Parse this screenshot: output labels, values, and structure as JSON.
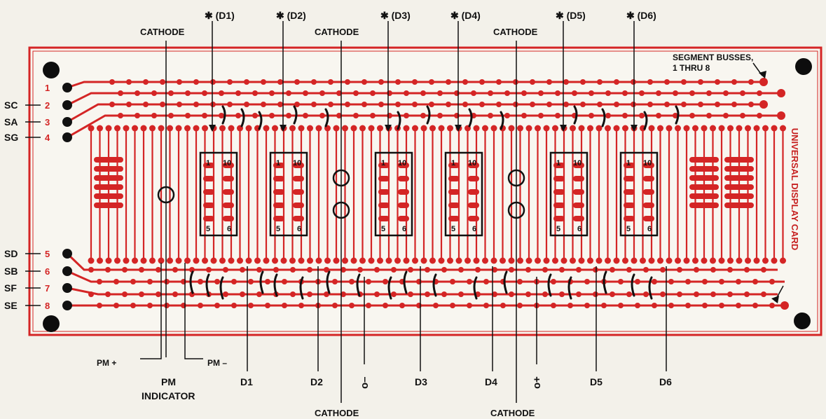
{
  "colors": {
    "paper": "#f3f1ea",
    "card": "#f8f6f0",
    "trace": "#d42525",
    "ink": "#111111",
    "hole": "#0d0d0d"
  },
  "card_title": "UNIVERSAL DISPLAY CARD",
  "callouts": {
    "segment_busses_line1": "SEGMENT BUSSES,",
    "segment_busses_line2": "1 THRU 8",
    "cathode": "CATHODE",
    "pm_plus": "PM +",
    "pm_minus": "PM –",
    "pm_line1": "PM",
    "pm_line2": "INDICATOR",
    "colon_minus": "o–",
    "colon_plus": "o+"
  },
  "star_labels": [
    "✱ (D1)",
    "✱ (D2)",
    "✱ (D3)",
    "✱ (D4)",
    "✱ (D5)",
    "✱ (D6)"
  ],
  "bottom_digit_labels": [
    "D1",
    "D2",
    "D3",
    "D4",
    "D5",
    "D6"
  ],
  "left_bus_labels": [
    {
      "seg": "",
      "num": "1"
    },
    {
      "seg": "SC",
      "num": "2"
    },
    {
      "seg": "SA",
      "num": "3"
    },
    {
      "seg": "SG",
      "num": "4"
    },
    {
      "seg": "SD",
      "num": "5"
    },
    {
      "seg": "SB",
      "num": "6"
    },
    {
      "seg": "SF",
      "num": "7"
    },
    {
      "seg": "SE",
      "num": "8"
    }
  ],
  "socket_pins": {
    "top_left": "1",
    "top_right": "10",
    "bottom_left": "5",
    "bottom_right": "6"
  }
}
